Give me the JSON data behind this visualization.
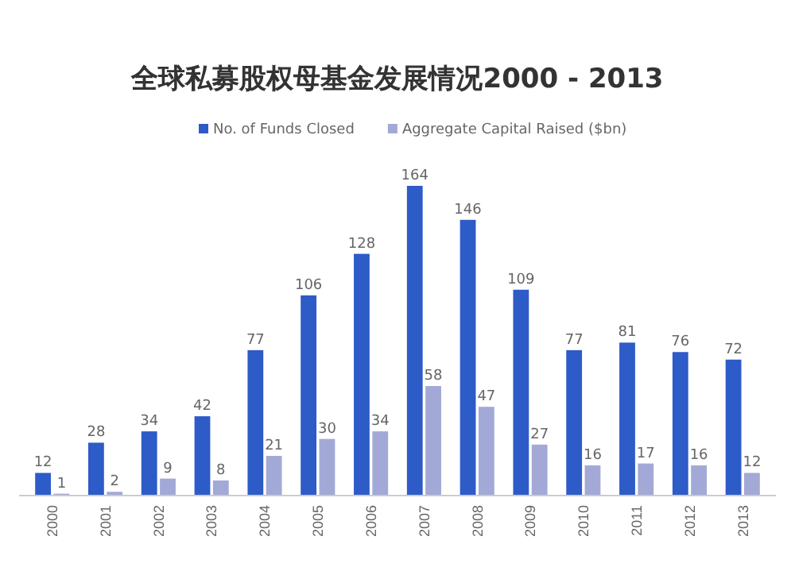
{
  "chart_data": {
    "type": "bar",
    "title": "全球私募股权母基金发展情况2000 - 2013",
    "categories": [
      "2000",
      "2001",
      "2002",
      "2003",
      "2004",
      "2005",
      "2006",
      "2007",
      "2008",
      "2009",
      "2010",
      "2011",
      "2012",
      "2013"
    ],
    "series": [
      {
        "name": "No. of Funds Closed",
        "color": "#2d5bc7",
        "values": [
          12,
          28,
          34,
          42,
          77,
          106,
          128,
          164,
          146,
          109,
          77,
          81,
          76,
          72
        ]
      },
      {
        "name": "Aggregate Capital Raised ($bn)",
        "color": "#a3a9d6",
        "values": [
          1,
          2,
          9,
          8,
          21,
          30,
          34,
          58,
          47,
          27,
          16,
          17,
          16,
          12
        ]
      }
    ],
    "data_labels": true,
    "legend": "top",
    "grid": false,
    "tick_labels": "x"
  }
}
